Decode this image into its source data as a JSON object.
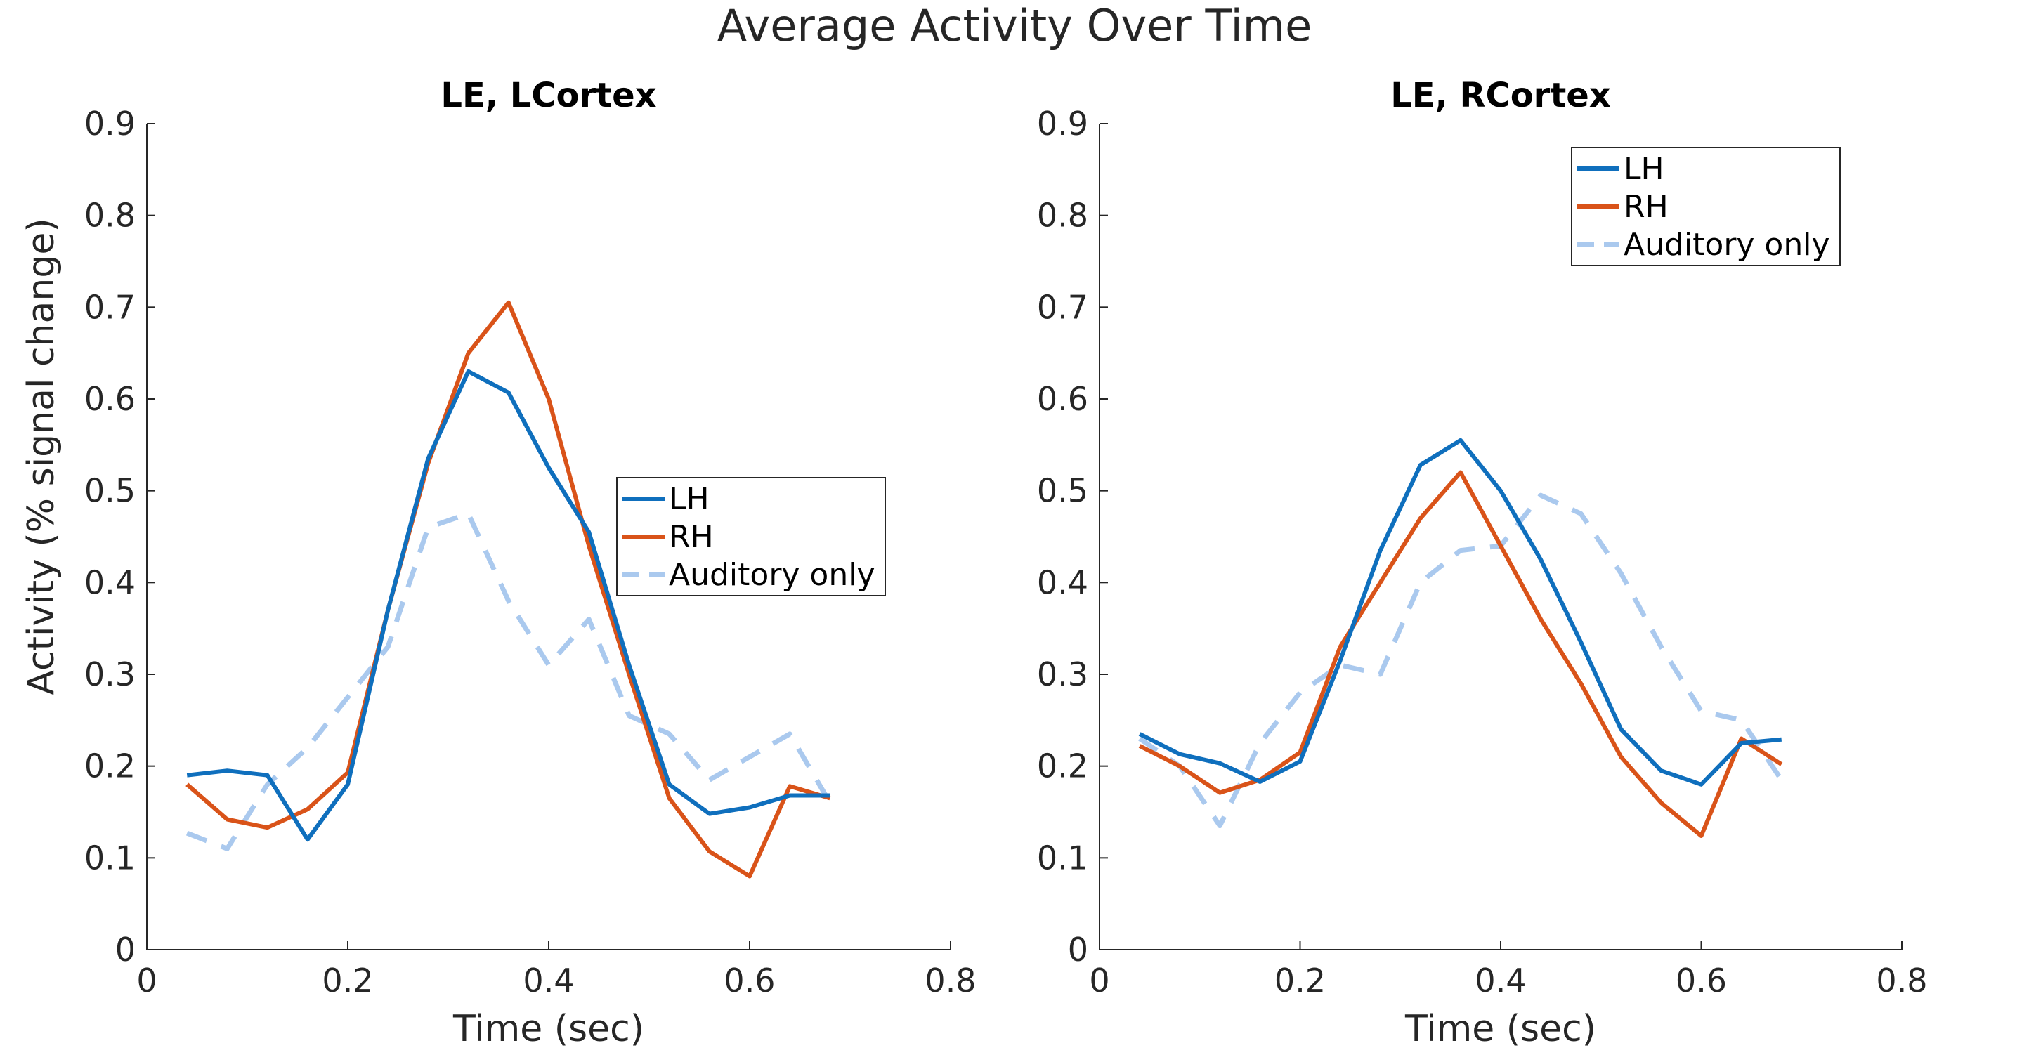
{
  "figure_title": "Average Activity Over Time",
  "y_shared_label": "Activity (% signal change)",
  "colors": {
    "LH": "#0f6fbd",
    "RH": "#d95319",
    "Auditory only": "#aac9ee",
    "axis": "#262626",
    "text": "#262626"
  },
  "chart_data": [
    {
      "type": "line",
      "title": "LE, LCortex",
      "xlabel": "Time (sec)",
      "ylabel": "Activity (% signal change)",
      "xlim": [
        0,
        0.8
      ],
      "ylim": [
        0,
        0.9
      ],
      "xticks": [
        0,
        0.2,
        0.4,
        0.6,
        0.8
      ],
      "xtick_labels": [
        "0",
        "0.2",
        "0.4",
        "0.6",
        "0.8"
      ],
      "yticks": [
        0,
        0.1,
        0.2,
        0.3,
        0.4,
        0.5,
        0.6,
        0.7,
        0.8,
        0.9
      ],
      "ytick_labels": [
        "0",
        "0.1",
        "0.2",
        "0.3",
        "0.4",
        "0.5",
        "0.6",
        "0.7",
        "0.8",
        "0.9"
      ],
      "grid": false,
      "legend_position": "center-right",
      "x": [
        0.04,
        0.08,
        0.12,
        0.16,
        0.2,
        0.24,
        0.28,
        0.32,
        0.36,
        0.4,
        0.44,
        0.48,
        0.52,
        0.56,
        0.6,
        0.64,
        0.68
      ],
      "series": [
        {
          "name": "LH",
          "style": "solid",
          "values": [
            0.19,
            0.195,
            0.19,
            0.12,
            0.18,
            0.37,
            0.535,
            0.63,
            0.607,
            0.525,
            0.455,
            0.31,
            0.18,
            0.148,
            0.155,
            0.168,
            0.168
          ]
        },
        {
          "name": "RH",
          "style": "solid",
          "values": [
            0.18,
            0.142,
            0.133,
            0.153,
            0.193,
            0.37,
            0.53,
            0.65,
            0.705,
            0.6,
            0.44,
            0.3,
            0.165,
            0.107,
            0.08,
            0.178,
            0.165
          ]
        },
        {
          "name": "Auditory only",
          "style": "dashed",
          "values": [
            0.127,
            0.11,
            0.18,
            0.22,
            0.275,
            0.33,
            0.46,
            0.475,
            0.38,
            0.31,
            0.36,
            0.255,
            0.235,
            0.185,
            0.21,
            0.235,
            0.16
          ]
        }
      ]
    },
    {
      "type": "line",
      "title": "LE, RCortex",
      "xlabel": "Time (sec)",
      "ylabel": "",
      "xlim": [
        0,
        0.8
      ],
      "ylim": [
        0,
        0.9
      ],
      "xticks": [
        0,
        0.2,
        0.4,
        0.6,
        0.8
      ],
      "xtick_labels": [
        "0",
        "0.2",
        "0.4",
        "0.6",
        "0.8"
      ],
      "yticks": [
        0,
        0.1,
        0.2,
        0.3,
        0.4,
        0.5,
        0.6,
        0.7,
        0.8,
        0.9
      ],
      "ytick_labels": [
        "0",
        "0.1",
        "0.2",
        "0.3",
        "0.4",
        "0.5",
        "0.6",
        "0.7",
        "0.8",
        "0.9"
      ],
      "grid": false,
      "legend_position": "top-right",
      "x": [
        0.04,
        0.08,
        0.12,
        0.16,
        0.2,
        0.24,
        0.28,
        0.32,
        0.36,
        0.4,
        0.44,
        0.48,
        0.52,
        0.56,
        0.6,
        0.64,
        0.68
      ],
      "series": [
        {
          "name": "LH",
          "style": "solid",
          "values": [
            0.235,
            0.213,
            0.203,
            0.183,
            0.205,
            0.315,
            0.435,
            0.528,
            0.555,
            0.5,
            0.425,
            0.335,
            0.24,
            0.195,
            0.18,
            0.225,
            0.229
          ]
        },
        {
          "name": "RH",
          "style": "solid",
          "values": [
            0.222,
            0.2,
            0.171,
            0.185,
            0.215,
            0.33,
            0.4,
            0.47,
            0.52,
            0.44,
            0.36,
            0.29,
            0.21,
            0.16,
            0.124,
            0.23,
            0.202
          ]
        },
        {
          "name": "Auditory only",
          "style": "dashed",
          "values": [
            0.23,
            0.2,
            0.135,
            0.225,
            0.28,
            0.31,
            0.3,
            0.4,
            0.435,
            0.44,
            0.495,
            0.475,
            0.41,
            0.33,
            0.26,
            0.25,
            0.185
          ]
        }
      ]
    }
  ]
}
